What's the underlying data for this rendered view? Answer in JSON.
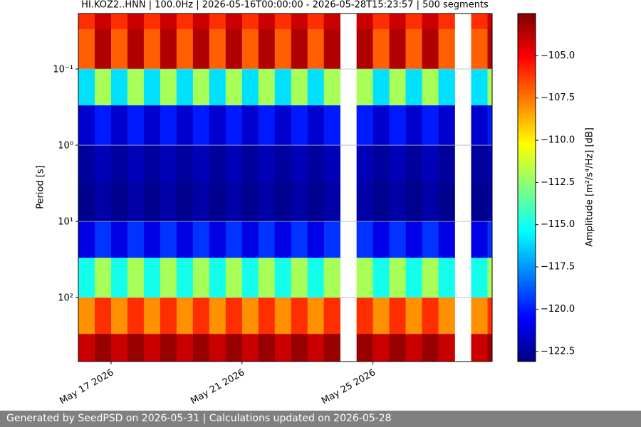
{
  "chart_data": {
    "type": "heatmap",
    "title": "HI.KOZ2..HNN | 100.0Hz | 2026-05-16T00:00:00 - 2026-05-28T15:23:57 | 500 segments",
    "y_label": "Period [s]",
    "colorbar_label": "Amplitude [m²/s⁴/Hz] [dB]",
    "colormap": "jet",
    "log_y": true,
    "grid": "y",
    "xlim": [
      "2026-05-16T00:00:00",
      "2026-05-28T15:23:57"
    ],
    "xticks": [
      {
        "value": "2026-05-17T00:00:00",
        "label": "May 17 2026"
      },
      {
        "value": "2026-05-21T00:00:00",
        "label": "May 21 2026"
      },
      {
        "value": "2026-05-25T00:00:00",
        "label": "May 25 2026"
      }
    ],
    "ylim": [
      690,
      0.0187
    ],
    "yticks": [
      {
        "value": 0.1,
        "label": "10⁻¹"
      },
      {
        "value": 1,
        "label": "10⁰"
      },
      {
        "value": 10,
        "label": "10¹"
      },
      {
        "value": 100,
        "label": "10²"
      }
    ],
    "clim": [
      -123.1,
      -102.5
    ],
    "cticks": [
      {
        "value": -105,
        "label": "−105.0"
      },
      {
        "value": -107.5,
        "label": "−107.5"
      },
      {
        "value": -110,
        "label": "−110.0"
      },
      {
        "value": -112.5,
        "label": "−112.5"
      },
      {
        "value": -115,
        "label": "−115.0"
      },
      {
        "value": -117.5,
        "label": "−117.5"
      },
      {
        "value": -120,
        "label": "−120.0"
      },
      {
        "value": -122.5,
        "label": "−122.5"
      }
    ],
    "x_edges": [
      "2026-05-16T00:00:00",
      "2026-05-16T12:00:00",
      "2026-05-17T00:00:00",
      "2026-05-17T12:00:00",
      "2026-05-18T00:00:00",
      "2026-05-18T12:00:00",
      "2026-05-19T00:00:00",
      "2026-05-19T12:00:00",
      "2026-05-20T00:00:00",
      "2026-05-20T12:00:00",
      "2026-05-21T00:00:00",
      "2026-05-21T12:00:00",
      "2026-05-22T00:00:00",
      "2026-05-22T12:00:00",
      "2026-05-23T00:00:00",
      "2026-05-23T12:00:00",
      "2026-05-24T00:00:00",
      "2026-05-24T12:00:00",
      "2026-05-25T00:00:00",
      "2026-05-25T12:00:00",
      "2026-05-26T00:00:00",
      "2026-05-26T12:00:00",
      "2026-05-27T00:00:00",
      "2026-05-27T12:00:00",
      "2026-05-28T00:00:00",
      "2026-05-28T12:00:00",
      "2026-05-28T15:23:57"
    ],
    "y_edges": [
      0.0187,
      0.03,
      0.1,
      0.3,
      1,
      3,
      10,
      30,
      100,
      300,
      690
    ],
    "values": [
      [
        -106,
        -104,
        -106,
        -104,
        -106,
        -104,
        -106,
        -104,
        -106,
        -104,
        -106,
        -104,
        -106,
        -104,
        -106,
        -104,
        null,
        -104,
        -106,
        -104,
        -106,
        -104,
        -106,
        null,
        -106,
        -104
      ],
      [
        -107,
        -103.5,
        -107,
        -103.5,
        -107,
        -103.5,
        -107,
        -103.5,
        -107,
        -103.5,
        -107,
        -103.5,
        -107,
        -103.5,
        -107,
        -103.5,
        null,
        -103.5,
        -107,
        -103.5,
        -107,
        -103.5,
        -107,
        null,
        -107,
        -103.5
      ],
      [
        -116,
        -112,
        -116,
        -112,
        -116,
        -112,
        -116,
        -112,
        -116,
        -112,
        -116,
        -112,
        -116,
        -112,
        -116,
        -112,
        null,
        -112,
        -116,
        -112,
        -116,
        -112,
        -116,
        null,
        -116,
        -112
      ],
      [
        -121.5,
        -120,
        -121.5,
        -120,
        -121.5,
        -120,
        -121.5,
        -120,
        -121.5,
        -120,
        -121.5,
        -120,
        -121.5,
        -120,
        -121.5,
        -120,
        null,
        -120,
        -121.5,
        -120,
        -121.5,
        -120,
        -121.5,
        null,
        -121.5,
        -120
      ],
      [
        -122.5,
        -122,
        -122.5,
        -122,
        -122.5,
        -122,
        -122.5,
        -122,
        -122.5,
        -122,
        -122.5,
        -122,
        -122.5,
        -122,
        -122.5,
        -122,
        null,
        -122,
        -122.5,
        -122,
        -122.5,
        -122,
        -122.5,
        null,
        -122.5,
        -122
      ],
      [
        -122.8,
        -122.3,
        -122.8,
        -122.3,
        -122.8,
        -122.3,
        -122.8,
        -122.3,
        -122.8,
        -122.3,
        -122.8,
        -122.3,
        -122.8,
        -122.3,
        -122.8,
        -122.3,
        null,
        -122.3,
        -122.8,
        -122.3,
        -122.8,
        -122.3,
        -122.8,
        null,
        -122.8,
        -122.3
      ],
      [
        -121,
        -119.5,
        -121,
        -119.5,
        -121,
        -119.5,
        -121,
        -119.5,
        -121,
        -119.5,
        -121,
        -119.5,
        -121,
        -119.5,
        -121,
        -119.5,
        null,
        -119.5,
        -121,
        -119.5,
        -121,
        -119.5,
        -121,
        null,
        -121,
        -119.5
      ],
      [
        -115,
        -112,
        -115,
        -112,
        -115,
        -112,
        -115,
        -112,
        -115,
        -112,
        -115,
        -112,
        -115,
        -112,
        -115,
        -112,
        null,
        -112,
        -115,
        -112,
        -115,
        -112,
        -115,
        null,
        -115,
        -112
      ],
      [
        -108,
        -106,
        -108,
        -106,
        -108,
        -106,
        -108,
        -106,
        -108,
        -106,
        -108,
        -106,
        -108,
        -106,
        -108,
        -106,
        null,
        -106,
        -108,
        -106,
        -108,
        -106,
        -108,
        null,
        -108,
        -106
      ],
      [
        -104,
        -103,
        -104,
        -103,
        -104,
        -103,
        -104,
        -103,
        -104,
        -103,
        -104,
        -103,
        -104,
        -103,
        -104,
        -103,
        null,
        -103,
        -104,
        -103,
        -104,
        -103,
        -104,
        null,
        -104,
        -103
      ]
    ]
  },
  "footer": {
    "text": "Generated by SeedPSD on 2026-05-31 | Calculations updated on 2026-05-28"
  }
}
